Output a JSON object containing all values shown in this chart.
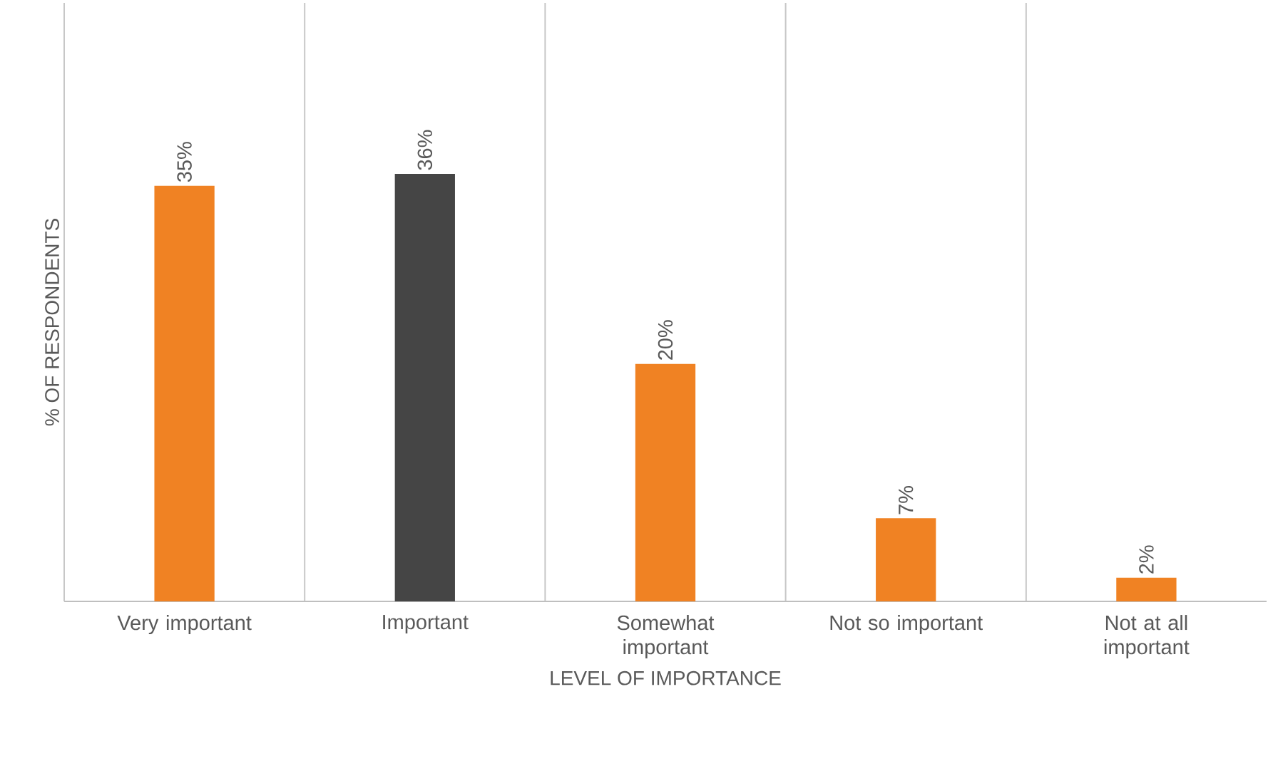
{
  "chart_data": {
    "type": "bar",
    "xlabel": "LEVEL OF IMPORTANCE",
    "ylabel": "% OF RESPONDENTS",
    "categories": [
      "Very important",
      "Important",
      "Somewhat important",
      "Not so important",
      "Not at all important"
    ],
    "values": [
      35,
      36,
      20,
      7,
      2
    ],
    "colors": [
      "#f08223",
      "#454545",
      "#f08223",
      "#f08223",
      "#f08223"
    ],
    "value_labels": [
      "35%",
      "36%",
      "20%",
      "7%",
      "2%"
    ],
    "grid": "x"
  }
}
